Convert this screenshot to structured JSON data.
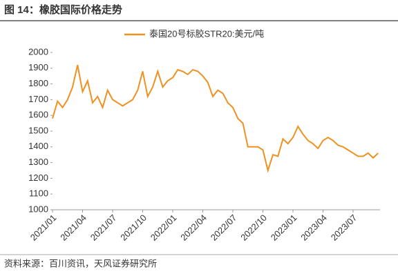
{
  "header": {
    "title": "图 14：橡胶国际价格走势"
  },
  "chart_data": {
    "type": "line",
    "x": [
      "2021/01",
      "2021/01",
      "2021/02",
      "2021/02",
      "2021/03",
      "2021/03",
      "2021/04",
      "2021/04",
      "2021/05",
      "2021/05",
      "2021/06",
      "2021/06",
      "2021/07",
      "2021/07",
      "2021/08",
      "2021/08",
      "2021/09",
      "2021/09",
      "2021/10",
      "2021/10",
      "2021/11",
      "2021/11",
      "2021/12",
      "2021/12",
      "2022/01",
      "2022/01",
      "2022/02",
      "2022/02",
      "2022/03",
      "2022/03",
      "2022/04",
      "2022/04",
      "2022/05",
      "2022/05",
      "2022/06",
      "2022/06",
      "2022/07",
      "2022/07",
      "2022/08",
      "2022/08",
      "2022/09",
      "2022/09",
      "2022/10",
      "2022/10",
      "2022/11",
      "2022/11",
      "2022/12",
      "2022/12",
      "2023/01",
      "2023/01",
      "2023/02",
      "2023/02",
      "2023/03",
      "2023/03",
      "2023/04",
      "2023/04",
      "2023/05",
      "2023/05",
      "2023/06",
      "2023/06",
      "2023/07",
      "2023/07",
      "2023/08",
      "2023/08",
      "2023/09",
      "2023/09"
    ],
    "series": [
      {
        "name": "泰国20号标胶STR20:美元/吨",
        "color": "#f0901e",
        "values": [
          1580,
          1690,
          1650,
          1700,
          1780,
          1920,
          1750,
          1820,
          1680,
          1720,
          1650,
          1760,
          1700,
          1680,
          1660,
          1680,
          1700,
          1760,
          1880,
          1720,
          1780,
          1880,
          1780,
          1820,
          1840,
          1890,
          1880,
          1860,
          1890,
          1880,
          1850,
          1810,
          1720,
          1760,
          1740,
          1680,
          1650,
          1580,
          1550,
          1400,
          1400,
          1400,
          1380,
          1250,
          1350,
          1340,
          1450,
          1420,
          1460,
          1530,
          1480,
          1440,
          1420,
          1390,
          1440,
          1460,
          1440,
          1410,
          1400,
          1380,
          1360,
          1340,
          1340,
          1360,
          1330,
          1360
        ]
      }
    ],
    "ylim": [
      1000,
      2000
    ],
    "yticks": [
      1000,
      1100,
      1200,
      1300,
      1400,
      1500,
      1600,
      1700,
      1800,
      1900,
      2000
    ],
    "xticks": [
      "2021/01",
      "2021/04",
      "2021/07",
      "2021/10",
      "2022/01",
      "2022/04",
      "2022/07",
      "2022/10",
      "2023/01",
      "2023/04",
      "2023/07"
    ]
  },
  "footer": {
    "source": "资料来源：百川资讯，天风证券研究所"
  }
}
